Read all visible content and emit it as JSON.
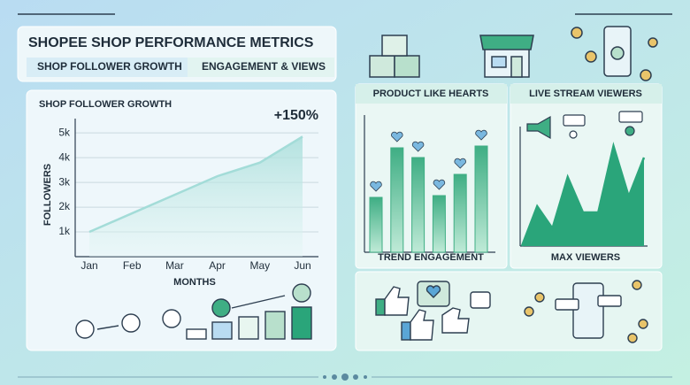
{
  "header": {
    "title": "SHOPEE SHOP PERFORMANCE METRICS",
    "tabs": [
      "SHOP FOLLOWER GROWTH",
      "ENGAGEMENT & VIEWS"
    ]
  },
  "chart_data": [
    {
      "type": "area",
      "title": "SHOP FOLLOWER GROWTH",
      "annotation": "+150%",
      "y_label": "FOLLOWERS",
      "x_label": "MONTHS",
      "categories": [
        "Jan",
        "Feb",
        "Mar",
        "Apr",
        "May",
        "Jun"
      ],
      "values": [
        1000,
        1750,
        2500,
        3250,
        3800,
        4850
      ],
      "color": "#a3dcd8",
      "ylim": [
        0,
        5400
      ],
      "yticks": [
        {
          "value": 1000,
          "label": "1k"
        },
        {
          "value": 2000,
          "label": "2k"
        },
        {
          "value": 3000,
          "label": "3k"
        },
        {
          "value": 4000,
          "label": "4k"
        },
        {
          "value": 5000,
          "label": "5k"
        }
      ],
      "grid": true
    },
    {
      "type": "bar",
      "title": "PRODUCT LIKE HEARTS",
      "x_label": "TREND ENGAGEMENT",
      "categories": [
        null,
        null,
        null,
        null,
        null,
        null
      ],
      "values": [
        62,
        118,
        107,
        64,
        88,
        120
      ],
      "color": "#3fae84",
      "ylim": [
        0,
        150
      ]
    },
    {
      "type": "area",
      "title": "LIVE STREAM VIEWERS",
      "x_label": "MAX VIEWERS",
      "categories": [
        null,
        null,
        null,
        null,
        null,
        null,
        null,
        null,
        null
      ],
      "values": [
        0,
        45,
        20,
        78,
        38,
        38,
        113,
        56,
        100
      ],
      "color": "#2aa57a",
      "ylim": [
        0,
        130
      ]
    }
  ]
}
